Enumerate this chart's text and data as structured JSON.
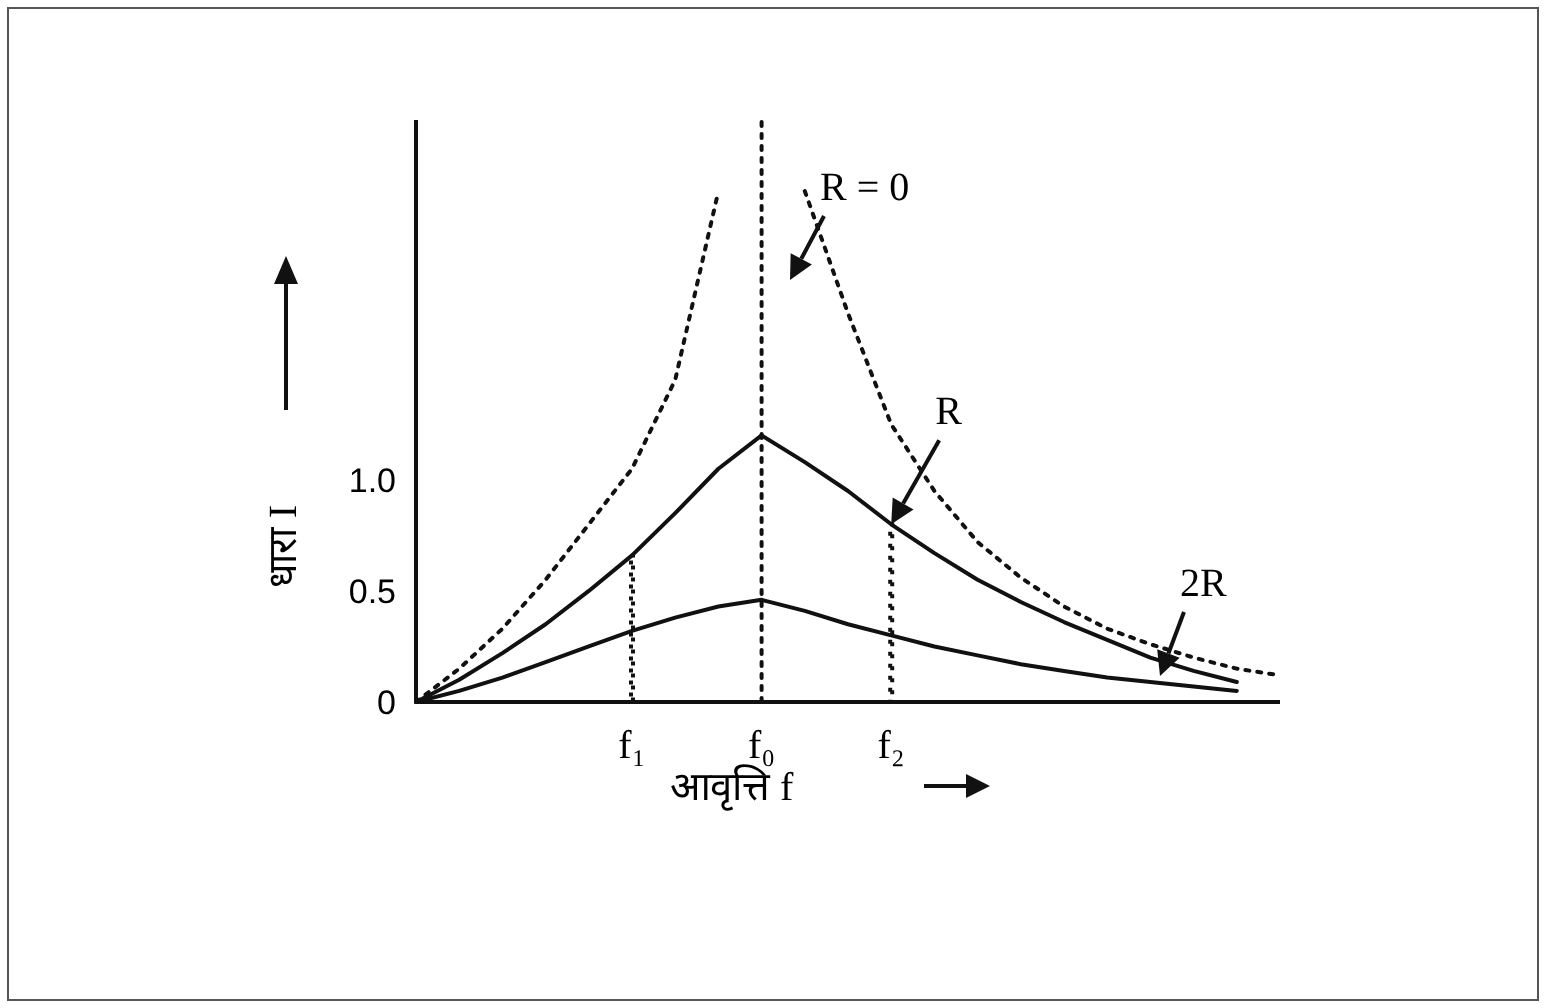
{
  "chart_data": {
    "type": "line",
    "xlabel": "आवृत्ति f",
    "ylabel": "धारा I",
    "ylim": [
      0,
      2.62
    ],
    "categories": [
      null,
      null,
      null,
      null,
      null,
      "f₁",
      null,
      null,
      "f₀",
      null,
      null,
      "f₂",
      null,
      null,
      null,
      null,
      null,
      null,
      null,
      null,
      null
    ],
    "yticks": [
      0,
      0.5,
      {
        "value": 1,
        "label": "1.0"
      }
    ],
    "grid": false,
    "series": [
      {
        "color": "#111111",
        "line_style": "dotted",
        "values": [
          0,
          0.15,
          0.33,
          0.55,
          0.8,
          1.05,
          1.45,
          2.3,
          null,
          2.3,
          1.75,
          1.25,
          0.95,
          0.72,
          0.56,
          0.43,
          0.33,
          0.26,
          0.2,
          0.15,
          0.12
        ]
      },
      {
        "color": "#111111",
        "line_style": "solid",
        "values": [
          0,
          0.1,
          0.22,
          0.35,
          0.5,
          0.66,
          0.85,
          1.05,
          1.2,
          1.08,
          0.95,
          0.8,
          0.67,
          0.55,
          0.45,
          0.36,
          0.28,
          0.2,
          0.14,
          0.09,
          null
        ]
      },
      {
        "color": "#111111",
        "line_style": "solid",
        "values": [
          0,
          0.05,
          0.11,
          0.18,
          0.25,
          0.32,
          0.38,
          0.43,
          0.46,
          0.41,
          0.35,
          0.3,
          0.25,
          0.21,
          0.17,
          0.14,
          0.11,
          0.09,
          0.07,
          0.05,
          null
        ]
      },
      {
        "type": "bar",
        "color": "#111111",
        "line_style": "dotted",
        "values": [
          null,
          null,
          null,
          null,
          null,
          0.66,
          null,
          null,
          null,
          null,
          null,
          0.8,
          null,
          null,
          null,
          null,
          null,
          null,
          null,
          null,
          null
        ]
      }
    ],
    "ref_lines": [
      {
        "axis": "x",
        "value": "f₀",
        "line_style": "dotted",
        "color": "#111111"
      }
    ],
    "annotations": [
      "R = 0",
      {
        "text": "R",
        "x": "f₂",
        "y": 0.8
      },
      "2R"
    ]
  }
}
